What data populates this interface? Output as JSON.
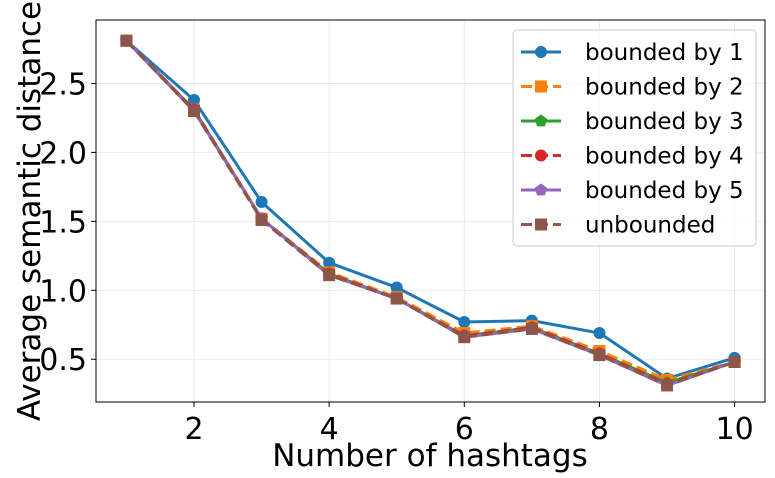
{
  "chart_data": {
    "type": "line",
    "xlabel": "Number of hashtags",
    "ylabel": "Average semantic distance",
    "x": [
      1,
      2,
      3,
      4,
      5,
      6,
      7,
      8,
      9,
      10
    ],
    "xlim": [
      0.55,
      10.45
    ],
    "ylim": [
      0.19,
      2.96
    ],
    "xticks": [
      2,
      4,
      6,
      8,
      10
    ],
    "yticks": [
      0.5,
      1.0,
      1.5,
      2.0,
      2.5
    ],
    "ytick_labels": [
      "0.5",
      "1.0",
      "1.5",
      "2.0",
      "2.5"
    ],
    "grid": true,
    "legend_position": "top-right",
    "series": [
      {
        "name": "bounded by 1",
        "color": "#1f77b4",
        "linestyle": "solid",
        "marker": "circle",
        "values": [
          2.81,
          2.38,
          1.64,
          1.2,
          1.02,
          0.77,
          0.78,
          0.69,
          0.36,
          0.51
        ]
      },
      {
        "name": "bounded by 2",
        "color": "#ff7f0e",
        "linestyle": "dashed",
        "marker": "square",
        "values": [
          2.81,
          2.31,
          1.52,
          1.13,
          0.95,
          0.69,
          0.74,
          0.56,
          0.35,
          0.48
        ]
      },
      {
        "name": "bounded by 3",
        "color": "#2ca02c",
        "linestyle": "solid",
        "marker": "pentagon",
        "values": [
          2.81,
          2.31,
          1.52,
          1.12,
          0.94,
          0.67,
          0.73,
          0.54,
          0.33,
          0.48
        ]
      },
      {
        "name": "bounded by 4",
        "color": "#d62728",
        "linestyle": "dashed",
        "marker": "circle",
        "values": [
          2.81,
          2.31,
          1.52,
          1.12,
          0.94,
          0.67,
          0.73,
          0.54,
          0.32,
          0.48
        ]
      },
      {
        "name": "bounded by 5",
        "color": "#9467bd",
        "linestyle": "solid",
        "marker": "pentagon",
        "values": [
          2.81,
          2.3,
          1.52,
          1.11,
          0.94,
          0.66,
          0.72,
          0.53,
          0.31,
          0.48
        ]
      },
      {
        "name": "unbounded",
        "color": "#8c564b",
        "linestyle": "dashed",
        "marker": "square",
        "values": [
          2.81,
          2.3,
          1.51,
          1.11,
          0.94,
          0.66,
          0.72,
          0.53,
          0.31,
          0.48
        ]
      }
    ]
  }
}
